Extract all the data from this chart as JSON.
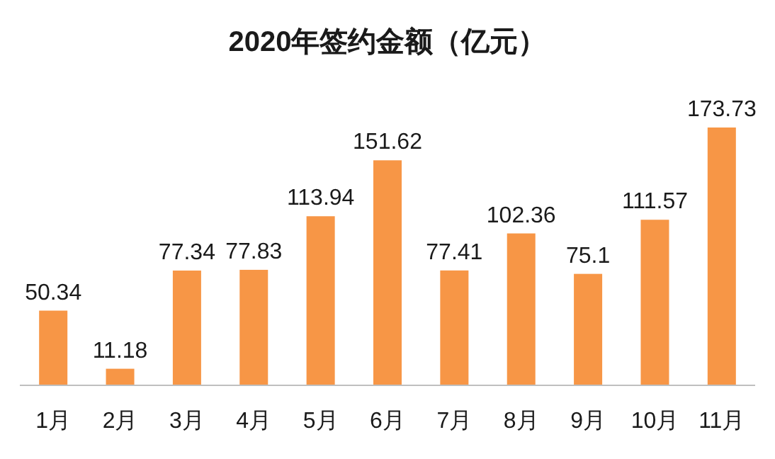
{
  "chart_data": {
    "type": "bar",
    "title": "2020年签约金额（亿元）",
    "categories": [
      "1月",
      "2月",
      "3月",
      "4月",
      "5月",
      "6月",
      "7月",
      "8月",
      "9月",
      "10月",
      "11月"
    ],
    "values": [
      50.34,
      11.18,
      77.34,
      77.83,
      113.94,
      151.62,
      77.41,
      102.36,
      75.1,
      111.57,
      173.73
    ],
    "color": "#f79646",
    "data_labels": true
  }
}
